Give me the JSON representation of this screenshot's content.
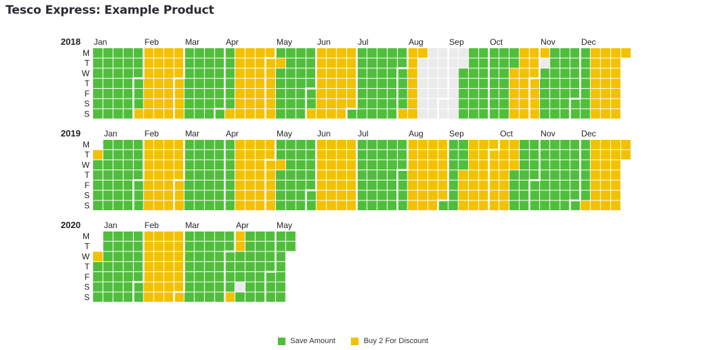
{
  "title": "Tesco Express: Example Product",
  "colors": {
    "save": "#50be3c",
    "buy2": "#f2c100",
    "none": "#ebebeb",
    "boundary": "#ffffff"
  },
  "legend": {
    "save_label": "Save Amount",
    "buy2_label": "Buy 2 For Discount"
  },
  "chart_data": {
    "type": "heatmap",
    "title": "Tesco Express: Example Product",
    "day_labels": [
      "M",
      "T",
      "W",
      "T",
      "F",
      "S",
      "S"
    ],
    "categories": [
      "Save Amount",
      "Buy 2 For Discount"
    ],
    "years": [
      {
        "year": "2018",
        "month_labels": [
          "Jan",
          "Feb",
          "Mar",
          "Apr",
          "May",
          "Jun",
          "Jul",
          "Aug",
          "Sep",
          "Oct",
          "Nov",
          "Dec"
        ],
        "periods": [
          {
            "start": "2018-01-01",
            "end": "2018-02-03",
            "promotion": "Save Amount"
          },
          {
            "start": "2018-02-04",
            "end": "2018-03-04",
            "promotion": "Buy 2 For Discount"
          },
          {
            "start": "2018-03-05",
            "end": "2018-04-07",
            "promotion": "Save Amount"
          },
          {
            "start": "2018-04-08",
            "end": "2018-05-06",
            "promotion": "Buy 2 For Discount"
          },
          {
            "start": "2018-05-07",
            "end": "2018-05-07",
            "promotion": "Save Amount"
          },
          {
            "start": "2018-05-08",
            "end": "2018-05-08",
            "promotion": "Buy 2 For Discount"
          },
          {
            "start": "2018-05-09",
            "end": "2018-06-02",
            "promotion": "Save Amount"
          },
          {
            "start": "2018-06-03",
            "end": "2018-06-30",
            "promotion": "Buy 2 For Discount"
          },
          {
            "start": "2018-07-01",
            "end": "2018-08-04",
            "promotion": "Save Amount"
          },
          {
            "start": "2018-08-05",
            "end": "2018-08-13",
            "promotion": "Buy 2 For Discount"
          },
          {
            "start": "2018-08-14",
            "end": "2018-09-11",
            "promotion": "No Promotion"
          },
          {
            "start": "2018-09-12",
            "end": "2018-10-16",
            "promotion": "Save Amount"
          },
          {
            "start": "2018-10-17",
            "end": "2018-11-05",
            "promotion": "Buy 2 For Discount"
          },
          {
            "start": "2018-11-06",
            "end": "2018-11-06",
            "promotion": "No Promotion"
          },
          {
            "start": "2018-11-07",
            "end": "2018-12-09",
            "promotion": "Save Amount"
          },
          {
            "start": "2018-12-10",
            "end": "2018-12-31",
            "promotion": "Buy 2 For Discount"
          }
        ]
      },
      {
        "year": "2019",
        "month_labels": [
          "Jan",
          "Feb",
          "Mar",
          "Apr",
          "May",
          "Jun",
          "Jul",
          "Aug",
          "Sep",
          "Oct",
          "Nov",
          "Dec"
        ],
        "periods": [
          {
            "start": "2019-01-01",
            "end": "2019-01-01",
            "promotion": "Buy 2 For Discount"
          },
          {
            "start": "2019-01-02",
            "end": "2019-02-03",
            "promotion": "Save Amount"
          },
          {
            "start": "2019-02-04",
            "end": "2019-03-03",
            "promotion": "Buy 2 For Discount"
          },
          {
            "start": "2019-03-04",
            "end": "2019-04-07",
            "promotion": "Save Amount"
          },
          {
            "start": "2019-04-08",
            "end": "2019-05-05",
            "promotion": "Buy 2 For Discount"
          },
          {
            "start": "2019-05-06",
            "end": "2019-05-07",
            "promotion": "Save Amount"
          },
          {
            "start": "2019-05-08",
            "end": "2019-05-08",
            "promotion": "Buy 2 For Discount"
          },
          {
            "start": "2019-05-09",
            "end": "2019-06-02",
            "promotion": "Save Amount"
          },
          {
            "start": "2019-06-03",
            "end": "2019-06-30",
            "promotion": "Buy 2 For Discount"
          },
          {
            "start": "2019-07-01",
            "end": "2019-08-04",
            "promotion": "Save Amount"
          },
          {
            "start": "2019-08-05",
            "end": "2019-08-31",
            "promotion": "Buy 2 For Discount"
          },
          {
            "start": "2019-09-01",
            "end": "2019-09-11",
            "promotion": "Save Amount"
          },
          {
            "start": "2019-09-12",
            "end": "2019-10-16",
            "promotion": "Buy 2 For Discount"
          },
          {
            "start": "2019-10-17",
            "end": "2019-12-07",
            "promotion": "Save Amount"
          },
          {
            "start": "2019-12-08",
            "end": "2019-12-31",
            "promotion": "Buy 2 For Discount"
          }
        ]
      },
      {
        "year": "2020",
        "month_labels": [
          "Jan",
          "Feb",
          "Mar",
          "Apr",
          "May"
        ],
        "periods": [
          {
            "start": "2020-01-01",
            "end": "2020-01-01",
            "promotion": "Buy 2 For Discount"
          },
          {
            "start": "2020-01-02",
            "end": "2020-02-02",
            "promotion": "Save Amount"
          },
          {
            "start": "2020-02-03",
            "end": "2020-03-01",
            "promotion": "Buy 2 For Discount"
          },
          {
            "start": "2020-03-02",
            "end": "2020-04-04",
            "promotion": "Save Amount"
          },
          {
            "start": "2020-04-05",
            "end": "2020-04-07",
            "promotion": "Buy 2 For Discount"
          },
          {
            "start": "2020-04-08",
            "end": "2020-04-10",
            "promotion": "Save Amount"
          },
          {
            "start": "2020-04-11",
            "end": "2020-04-11",
            "promotion": "No Promotion"
          },
          {
            "start": "2020-04-12",
            "end": "2020-05-12",
            "promotion": "Save Amount"
          }
        ]
      }
    ]
  }
}
